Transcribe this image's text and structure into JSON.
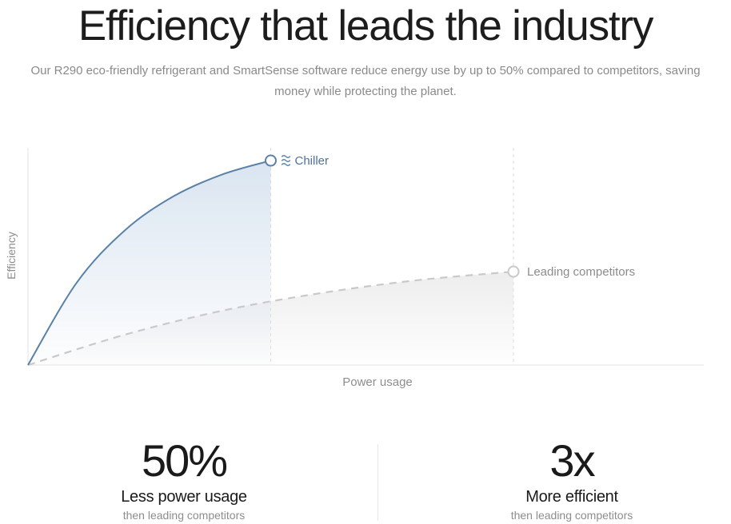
{
  "hero": {
    "title": "Efficiency that leads the industry",
    "subtitle": "Our R290 eco-friendly refrigerant and SmartSense software reduce energy use by up to 50% compared to competitors, saving money while protecting the planet."
  },
  "chart_data": {
    "type": "line",
    "xlabel": "Power usage",
    "ylabel": "Efficiency",
    "xlim": [
      0,
      1
    ],
    "ylim": [
      0,
      1
    ],
    "grid": false,
    "series": [
      {
        "name": "Chiller",
        "color": "#5a82a8",
        "fill": "#d6e2ef",
        "style": "solid",
        "icon": "waves-icon",
        "x": [
          0,
          0.1,
          0.2,
          0.3,
          0.4,
          0.5
        ],
        "y": [
          0,
          0.378,
          0.621,
          0.777,
          0.877,
          0.941
        ]
      },
      {
        "name": "Leading competitors",
        "color": "#c9c9c9",
        "fill": "#ebebeb",
        "style": "dashed",
        "icon": "",
        "x": [
          0,
          0.2,
          0.4,
          0.6,
          0.8,
          1.0
        ],
        "y": [
          0,
          0.14,
          0.25,
          0.33,
          0.39,
          0.43
        ]
      }
    ]
  },
  "stats": [
    {
      "value": "50%",
      "label": "Less power usage",
      "note": "then leading competitors"
    },
    {
      "value": "3x",
      "label": "More efficient",
      "note": "then leading competitors"
    }
  ]
}
